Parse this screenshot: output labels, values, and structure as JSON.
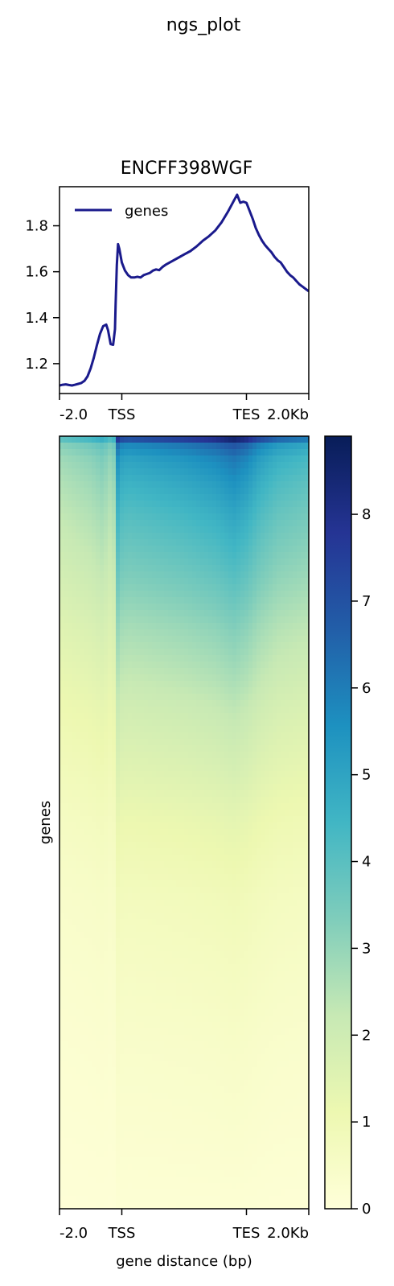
{
  "figure": {
    "suptitle": "ngs_plot"
  },
  "chart_data": [
    {
      "type": "line",
      "title": "ENCFF398WGF",
      "xlabel": "",
      "ylabel": "",
      "x_ticks": [
        "-2.0",
        "TSS",
        "TES",
        "2.0Kb"
      ],
      "y_ticks": [
        "1.2",
        "1.4",
        "1.6",
        "1.8"
      ],
      "ylim": [
        1.07,
        1.97
      ],
      "xlim": [
        0,
        400
      ],
      "legend": {
        "position": "top-left",
        "entries": [
          "genes"
        ]
      },
      "series": [
        {
          "name": "genes",
          "color": "#1a1a8c",
          "points": [
            [
              0,
              1.105
            ],
            [
              5,
              1.108
            ],
            [
              10,
              1.11
            ],
            [
              15,
              1.107
            ],
            [
              20,
              1.105
            ],
            [
              25,
              1.108
            ],
            [
              30,
              1.112
            ],
            [
              35,
              1.116
            ],
            [
              40,
              1.125
            ],
            [
              45,
              1.145
            ],
            [
              50,
              1.18
            ],
            [
              55,
              1.225
            ],
            [
              60,
              1.28
            ],
            [
              65,
              1.33
            ],
            [
              70,
              1.363
            ],
            [
              75,
              1.37
            ],
            [
              78,
              1.345
            ],
            [
              82,
              1.285
            ],
            [
              86,
              1.282
            ],
            [
              89,
              1.35
            ],
            [
              90,
              1.46
            ],
            [
              92,
              1.63
            ],
            [
              94,
              1.72
            ],
            [
              96,
              1.7
            ],
            [
              100,
              1.64
            ],
            [
              105,
              1.605
            ],
            [
              110,
              1.585
            ],
            [
              115,
              1.575
            ],
            [
              120,
              1.575
            ],
            [
              125,
              1.578
            ],
            [
              130,
              1.575
            ],
            [
              135,
              1.585
            ],
            [
              140,
              1.59
            ],
            [
              145,
              1.595
            ],
            [
              150,
              1.605
            ],
            [
              155,
              1.61
            ],
            [
              160,
              1.607
            ],
            [
              165,
              1.62
            ],
            [
              170,
              1.63
            ],
            [
              180,
              1.645
            ],
            [
              190,
              1.66
            ],
            [
              200,
              1.675
            ],
            [
              210,
              1.69
            ],
            [
              220,
              1.71
            ],
            [
              230,
              1.735
            ],
            [
              240,
              1.755
            ],
            [
              250,
              1.78
            ],
            [
              260,
              1.815
            ],
            [
              270,
              1.86
            ],
            [
              280,
              1.91
            ],
            [
              285,
              1.935
            ],
            [
              290,
              1.9
            ],
            [
              295,
              1.905
            ],
            [
              300,
              1.9
            ],
            [
              305,
              1.865
            ],
            [
              310,
              1.83
            ],
            [
              315,
              1.79
            ],
            [
              320,
              1.76
            ],
            [
              325,
              1.735
            ],
            [
              330,
              1.715
            ],
            [
              335,
              1.7
            ],
            [
              340,
              1.685
            ],
            [
              345,
              1.665
            ],
            [
              350,
              1.65
            ],
            [
              355,
              1.64
            ],
            [
              360,
              1.62
            ],
            [
              365,
              1.6
            ],
            [
              370,
              1.585
            ],
            [
              375,
              1.575
            ],
            [
              380,
              1.56
            ],
            [
              385,
              1.545
            ],
            [
              390,
              1.535
            ],
            [
              395,
              1.525
            ],
            [
              400,
              1.515
            ]
          ]
        }
      ]
    },
    {
      "type": "heatmap",
      "title": "",
      "xlabel": "gene distance (bp)",
      "ylabel": "genes",
      "x_ticks": [
        "-2.0",
        "TSS",
        "TES",
        "2.0Kb"
      ],
      "colormap": "YlGnBu",
      "colorbar": {
        "range": [
          0,
          8.9
        ],
        "ticks": [
          "0",
          "1",
          "2",
          "3",
          "4",
          "5",
          "6",
          "7",
          "8"
        ]
      },
      "colors": [
        "#ffffd9",
        "#edf8b1",
        "#c7e9b4",
        "#7fcdbb",
        "#41b6c4",
        "#1d91c0",
        "#225ea8",
        "#253494",
        "#081d58"
      ],
      "row_profile": [
        [
          0.0,
          8.4
        ],
        [
          0.01,
          6.2
        ],
        [
          0.03,
          5.4
        ],
        [
          0.06,
          4.9
        ],
        [
          0.1,
          4.4
        ],
        [
          0.15,
          3.9
        ],
        [
          0.2,
          3.4
        ],
        [
          0.25,
          2.9
        ],
        [
          0.3,
          2.5
        ],
        [
          0.35,
          2.1
        ],
        [
          0.4,
          1.8
        ],
        [
          0.45,
          1.5
        ],
        [
          0.5,
          1.2
        ],
        [
          0.55,
          1.0
        ],
        [
          0.6,
          0.8
        ],
        [
          0.7,
          0.6
        ],
        [
          0.8,
          0.42
        ],
        [
          0.9,
          0.3
        ],
        [
          1.0,
          0.15
        ]
      ],
      "column_profile": [
        [
          0,
          0.52
        ],
        [
          50,
          0.58
        ],
        [
          70,
          0.63
        ],
        [
          80,
          0.56
        ],
        [
          88,
          0.6
        ],
        [
          90,
          1.12
        ],
        [
          96,
          0.96
        ],
        [
          110,
          0.93
        ],
        [
          150,
          0.96
        ],
        [
          200,
          1.0
        ],
        [
          250,
          1.06
        ],
        [
          280,
          1.13
        ],
        [
          300,
          1.07
        ],
        [
          320,
          0.96
        ],
        [
          350,
          0.86
        ],
        [
          400,
          0.8
        ]
      ]
    }
  ]
}
